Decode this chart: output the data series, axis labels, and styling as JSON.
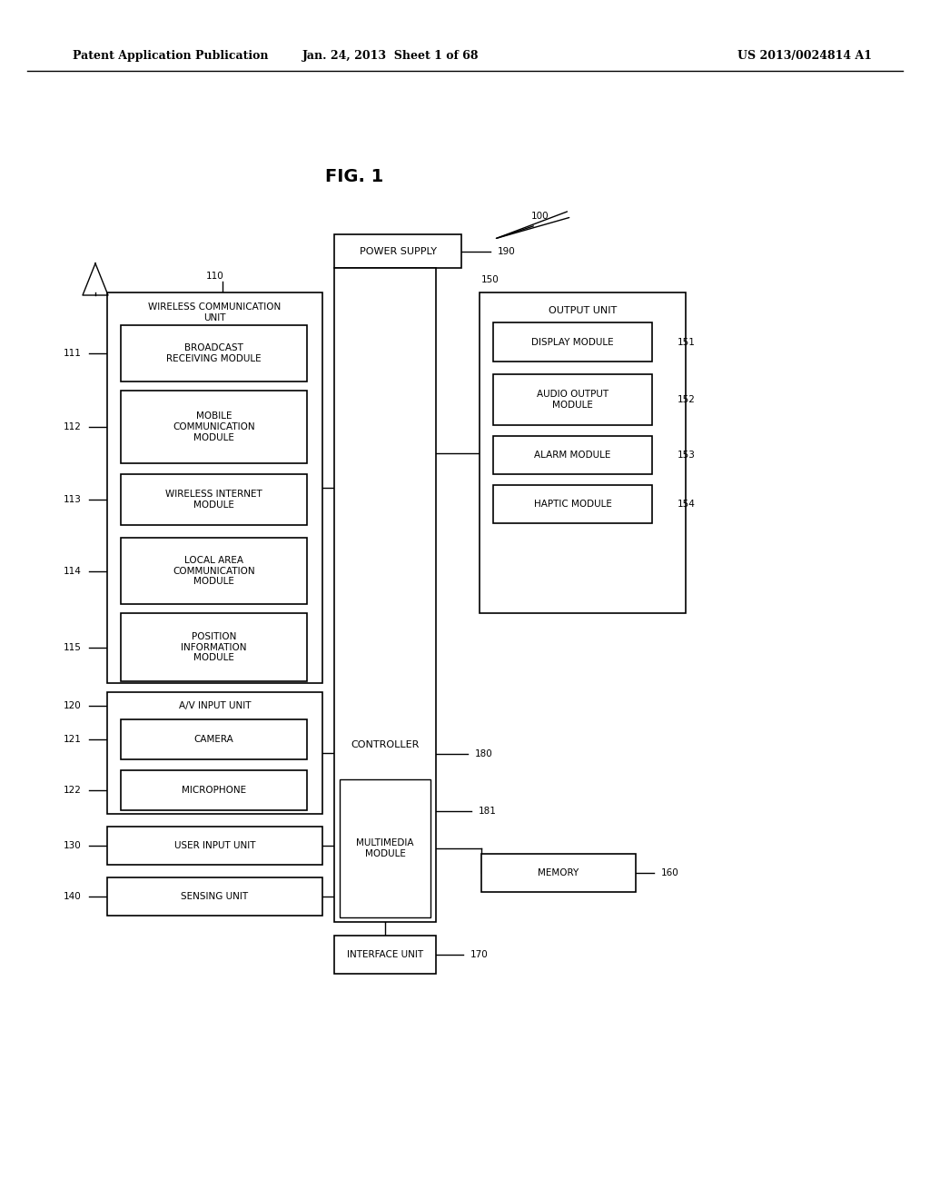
{
  "bg_color": "#ffffff",
  "header_left": "Patent Application Publication",
  "header_center": "Jan. 24, 2013  Sheet 1 of 68",
  "header_right": "US 2013/0024814 A1",
  "fig_label": "FIG. 1"
}
